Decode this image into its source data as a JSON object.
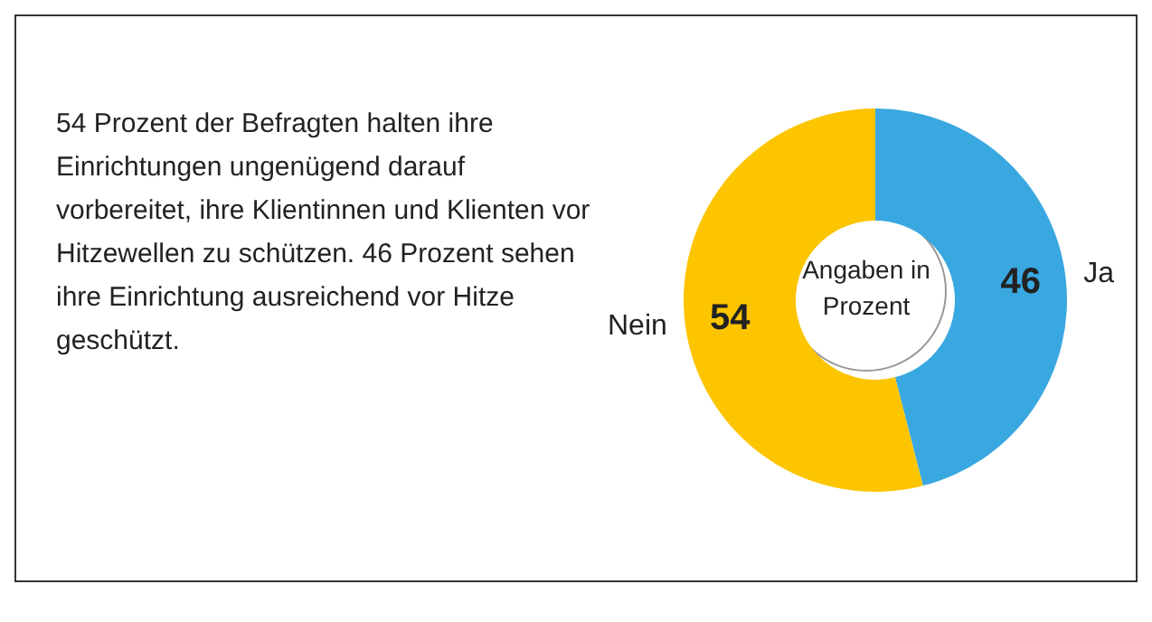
{
  "chart_data": {
    "type": "donut",
    "title": "54 Prozent der Befragten halten ihre Einrichtungen ungenügend darauf vorbereitet, ihre Klientinnen und Klienten vor Hitzewellen zu schützen. 46 Prozent sehen ihre Einrichtung ausreichend vor Hitze geschützt.",
    "categories": [
      "Ja",
      "Nein"
    ],
    "values": [
      46,
      54
    ],
    "colors": [
      "#3aa8e0",
      "#fcc500"
    ],
    "data_labels": true,
    "annotations": [
      "Angaben in Prozent"
    ]
  }
}
